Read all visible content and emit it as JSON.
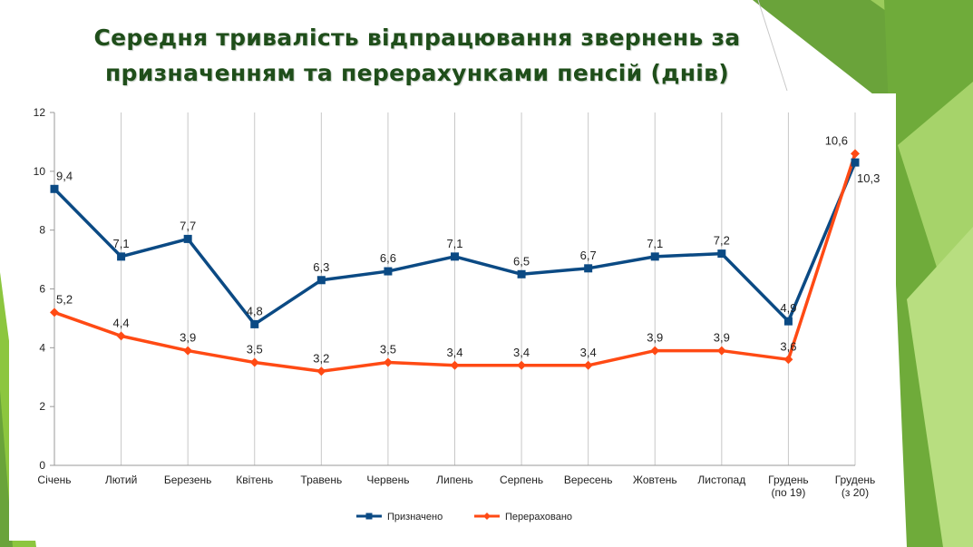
{
  "slide": {
    "title_line1": "Середня тривалість відпрацювання звернень за",
    "title_line2": "призначенням та перерахунками пенсій (днів)",
    "accent_color": "#8cc63f"
  },
  "chart_data": {
    "type": "line",
    "categories": [
      [
        "Січень"
      ],
      [
        "Лютий"
      ],
      [
        "Березень"
      ],
      [
        "Квітень"
      ],
      [
        "Травень"
      ],
      [
        "Червень"
      ],
      [
        "Липень"
      ],
      [
        "Серпень"
      ],
      [
        "Вересень"
      ],
      [
        "Жовтень"
      ],
      [
        "Листопад"
      ],
      [
        "Грудень",
        "(по 19)"
      ],
      [
        "Грудень",
        "(з 20)"
      ]
    ],
    "series": [
      {
        "name": "Призначено",
        "color": "#0b4a84",
        "marker": "square",
        "values": [
          9.4,
          7.1,
          7.7,
          4.8,
          6.3,
          6.6,
          7.1,
          6.5,
          6.7,
          7.1,
          7.2,
          4.9,
          10.3
        ],
        "labels": [
          "9,4",
          "7,1",
          "7,7",
          "4,8",
          "6,3",
          "6,6",
          "7,1",
          "6,5",
          "6,7",
          "7,1",
          "7,2",
          "4,9",
          "10,3"
        ]
      },
      {
        "name": "Перераховано",
        "color": "#ff4a14",
        "marker": "diamond",
        "values": [
          5.2,
          4.4,
          3.9,
          3.5,
          3.2,
          3.5,
          3.4,
          3.4,
          3.4,
          3.9,
          3.9,
          3.6,
          10.6
        ],
        "labels": [
          "5,2",
          "4,4",
          "3,9",
          "3,5",
          "3,2",
          "3,5",
          "3,4",
          "3,4",
          "3,4",
          "3,9",
          "3,9",
          "3,6",
          "10,6"
        ]
      }
    ],
    "ylim": [
      0,
      12
    ],
    "yticks": [
      0,
      2,
      4,
      6,
      8,
      10,
      12
    ],
    "grid": "vertical",
    "legend": "bottom"
  }
}
